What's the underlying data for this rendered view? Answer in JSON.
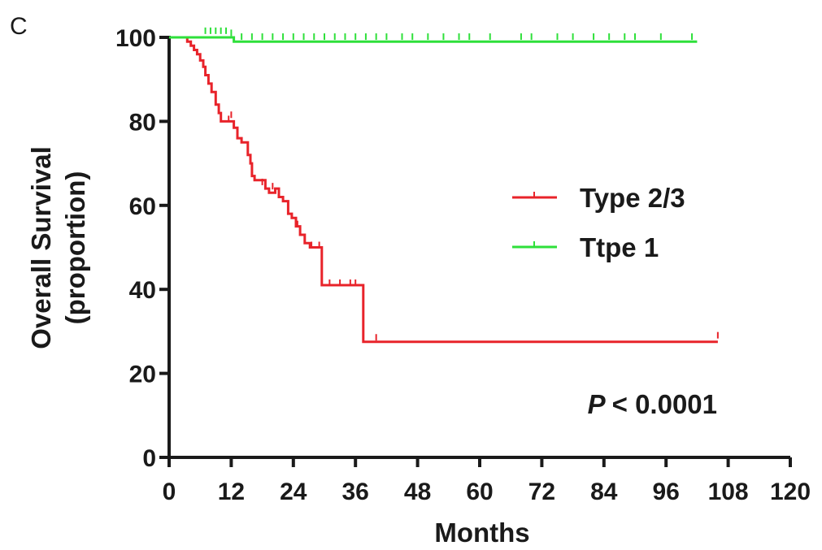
{
  "panel_label": "C",
  "colors": {
    "type23": "#e8232a",
    "type1": "#2ee03a",
    "axis": "#1a1a1a"
  },
  "chart_data": {
    "type": "line",
    "subtype": "kaplan-meier step curve",
    "title": "",
    "xlabel": "Months",
    "ylabel_lines": [
      "Overall Survival",
      "(proportion)"
    ],
    "xlim": [
      0,
      120
    ],
    "ylim": [
      0,
      100
    ],
    "xticks": [
      0,
      12,
      24,
      36,
      48,
      60,
      72,
      84,
      96,
      108,
      120
    ],
    "yticks": [
      0,
      20,
      40,
      60,
      80,
      100
    ],
    "grid": false,
    "legend_position": "center-right",
    "annotation": {
      "p_symbol": "P",
      "p_text": "< 0.0001"
    },
    "series": [
      {
        "name": "Type 2/3",
        "color": "#e8232a",
        "steps": [
          [
            0,
            100
          ],
          [
            3,
            100
          ],
          [
            3.5,
            99
          ],
          [
            4.2,
            98
          ],
          [
            4.8,
            97
          ],
          [
            5.4,
            96
          ],
          [
            6,
            94.5
          ],
          [
            6.6,
            93
          ],
          [
            7,
            91
          ],
          [
            7.6,
            89
          ],
          [
            8.2,
            87
          ],
          [
            9,
            84
          ],
          [
            9.6,
            82
          ],
          [
            10,
            80
          ],
          [
            12.5,
            78.5
          ],
          [
            13.2,
            76
          ],
          [
            14,
            75
          ],
          [
            15.2,
            72
          ],
          [
            15.7,
            70
          ],
          [
            16,
            67
          ],
          [
            16.5,
            66
          ],
          [
            18.6,
            64
          ],
          [
            19.3,
            63
          ],
          [
            20.5,
            64
          ],
          [
            21.2,
            62
          ],
          [
            22,
            61
          ],
          [
            23,
            58
          ],
          [
            23.7,
            57
          ],
          [
            24.5,
            55
          ],
          [
            25.3,
            53
          ],
          [
            26.2,
            51
          ],
          [
            27.2,
            50
          ],
          [
            29.5,
            41
          ],
          [
            37.5,
            27.5
          ],
          [
            106,
            27.5
          ]
        ],
        "censored": [
          [
            11.5,
            80
          ],
          [
            12,
            81
          ],
          [
            18,
            65
          ],
          [
            20,
            64
          ],
          [
            24.8,
            55
          ],
          [
            27.5,
            50
          ],
          [
            29,
            50
          ],
          [
            31,
            41
          ],
          [
            33,
            41
          ],
          [
            35,
            41
          ],
          [
            36,
            41
          ],
          [
            40,
            28
          ],
          [
            106,
            28.5
          ]
        ]
      },
      {
        "name": "Ttpe 1",
        "color": "#2ee03a",
        "steps": [
          [
            0,
            100
          ],
          [
            12.2,
            100
          ],
          [
            12.5,
            99
          ],
          [
            102,
            99
          ]
        ],
        "censored": [
          [
            7,
            101
          ],
          [
            8,
            101
          ],
          [
            9,
            101
          ],
          [
            10,
            101
          ],
          [
            11,
            101
          ],
          [
            12,
            100.5
          ],
          [
            14,
            99.6
          ],
          [
            16,
            99.6
          ],
          [
            18,
            99.6
          ],
          [
            20,
            99.6
          ],
          [
            22,
            99.6
          ],
          [
            24,
            99.6
          ],
          [
            26,
            99.6
          ],
          [
            28,
            99.6
          ],
          [
            30,
            99.6
          ],
          [
            32,
            99.6
          ],
          [
            34,
            99.6
          ],
          [
            36,
            99.6
          ],
          [
            38,
            99.6
          ],
          [
            40,
            99.6
          ],
          [
            42,
            99.6
          ],
          [
            45,
            99.6
          ],
          [
            47,
            99.6
          ],
          [
            50,
            99.6
          ],
          [
            53,
            99.6
          ],
          [
            56,
            99.6
          ],
          [
            58,
            99.6
          ],
          [
            62,
            99.6
          ],
          [
            68,
            99.6
          ],
          [
            70,
            99.6
          ],
          [
            75,
            99.6
          ],
          [
            78,
            99.6
          ],
          [
            82,
            99.6
          ],
          [
            85,
            99.6
          ],
          [
            88,
            99.6
          ],
          [
            90,
            99.6
          ],
          [
            95,
            99.6
          ],
          [
            101,
            99.6
          ]
        ]
      }
    ]
  }
}
